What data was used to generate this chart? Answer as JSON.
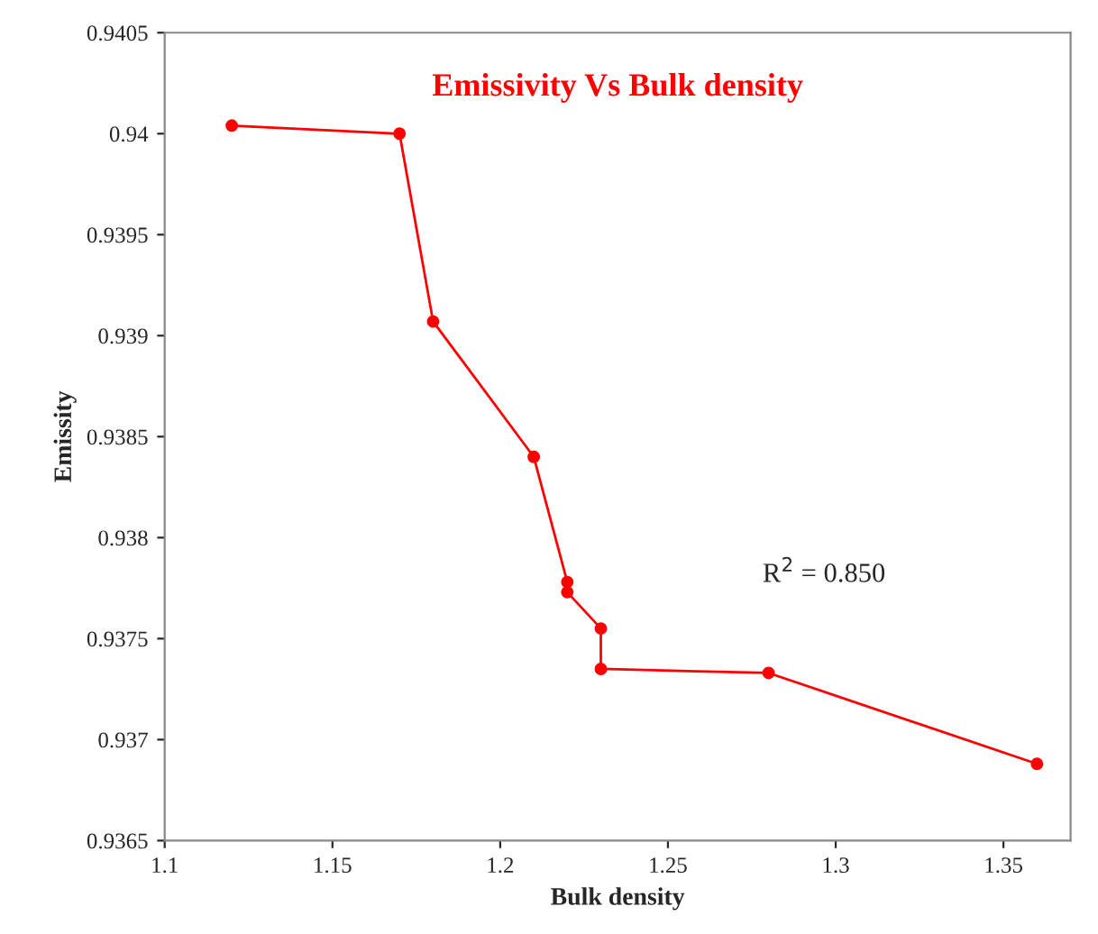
{
  "chart_data": {
    "type": "line",
    "title": "Emissivity Vs Bulk density",
    "xlabel": "Bulk density",
    "ylabel": "Emissity",
    "x": [
      1.12,
      1.17,
      1.18,
      1.21,
      1.22,
      1.22,
      1.23,
      1.23,
      1.28,
      1.36
    ],
    "series": [
      {
        "color": "#ff0000",
        "values": [
          0.94004,
          0.94,
          0.93907,
          0.9384,
          0.93778,
          0.93773,
          0.93755,
          0.93735,
          0.93733,
          0.93688
        ]
      }
    ],
    "xlim": [
      1.1,
      1.37
    ],
    "xticks": [
      1.1,
      1.15,
      1.2,
      1.25,
      1.3,
      1.35
    ],
    "ylim": [
      0.9365,
      0.9405
    ],
    "yticks": [
      0.9365,
      0.937,
      0.9375,
      0.938,
      0.9385,
      0.939,
      0.9395,
      0.94,
      0.9405
    ],
    "annotations": [
      "R$^{2}$ = 0.850"
    ],
    "marker": "circle",
    "line_style": "solid",
    "grid": false,
    "legend": false
  }
}
